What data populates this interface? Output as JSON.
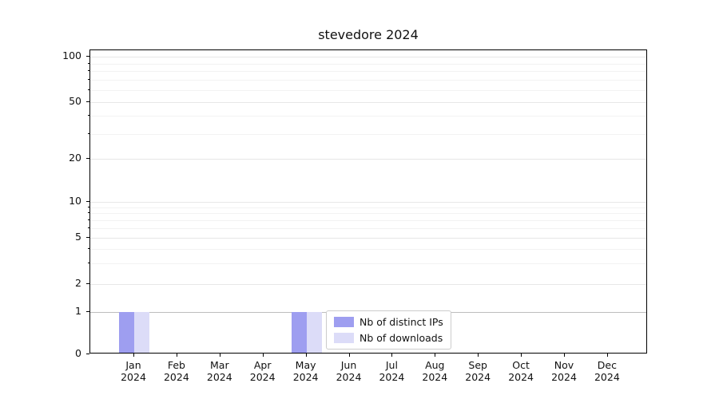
{
  "chart_data": {
    "type": "bar",
    "title": "stevedore 2024",
    "x_tick_months": [
      "Jan",
      "Feb",
      "Mar",
      "Apr",
      "May",
      "Jun",
      "Jul",
      "Aug",
      "Sep",
      "Oct",
      "Nov",
      "Dec"
    ],
    "x_tick_year": "2024",
    "series": [
      {
        "name": "Nb of distinct IPs",
        "color": "#9e9ef0",
        "values": [
          1,
          0,
          0,
          0,
          1,
          0,
          0,
          0,
          0,
          0,
          0,
          0
        ]
      },
      {
        "name": "Nb of downloads",
        "color": "#dcdcf8",
        "values": [
          1,
          0,
          0,
          0,
          1,
          0,
          0,
          0,
          0,
          0,
          0,
          0
        ]
      }
    ],
    "y_ticks": [
      0,
      1,
      2,
      5,
      10,
      20,
      50,
      100
    ],
    "y_minor_ticks": [
      3,
      4,
      6,
      7,
      8,
      9,
      30,
      40,
      60,
      70,
      80,
      90
    ],
    "y_scale": "log-with-zero",
    "ylim": [
      0,
      110
    ],
    "grid": true,
    "legend": {
      "entries": [
        "Nb of distinct IPs",
        "Nb of downloads"
      ],
      "position": "inside-bottom-center"
    }
  },
  "colors": {
    "background": "#ffffff",
    "spine": "#000000",
    "grid_major": "#e7e7e7",
    "grid_minor": "#f2f2f2",
    "grid_emphasis": "#bdbdbd",
    "text": "#111111",
    "legend_border": "#cccccc"
  }
}
